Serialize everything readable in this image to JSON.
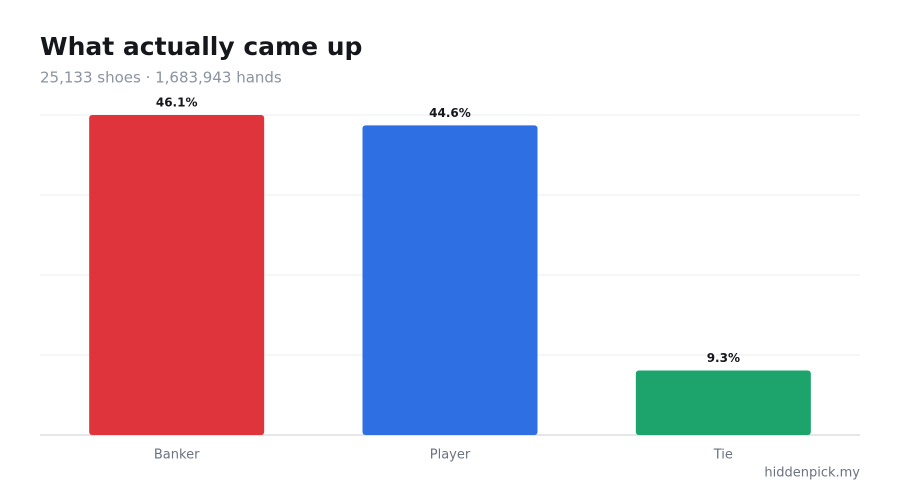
{
  "chart_data": {
    "type": "bar",
    "title": "What actually came up",
    "subtitle": "25,133 shoes · 1,683,943 hands",
    "categories": [
      "Banker",
      "Player",
      "Tie"
    ],
    "values": [
      46.1,
      44.6,
      9.3
    ],
    "value_labels": [
      "46.1%",
      "44.6%",
      "9.3%"
    ],
    "colors": [
      "#e0343c",
      "#2f6fe4",
      "#1ca46c"
    ],
    "ylim": [
      0,
      46.1
    ],
    "grid": true,
    "source": "hiddenpick.my"
  }
}
